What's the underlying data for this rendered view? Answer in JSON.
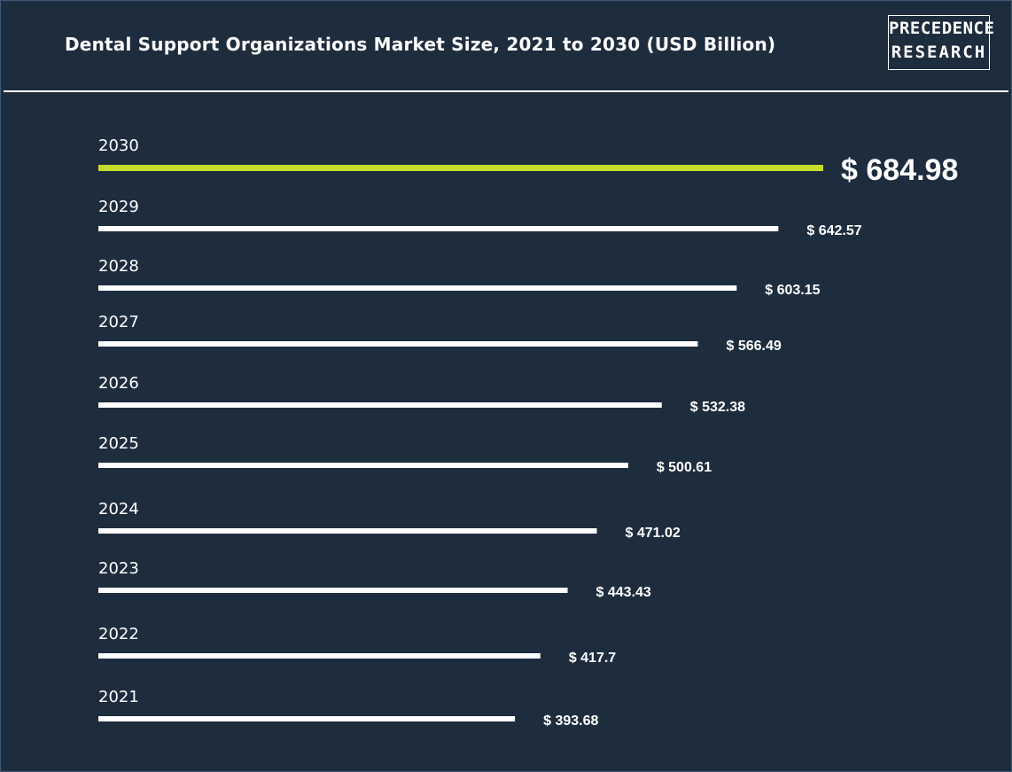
{
  "header": {
    "title": "Dental Support Organizations Market Size, 2021 to 2030 (USD Billion)",
    "logo_line1": "PRECEDENCE",
    "logo_line2": "RESEARCH"
  },
  "colors": {
    "background": "#1e2d3e",
    "bar": "#ffffff",
    "highlight_bar": "#c6dc2a",
    "text": "#ffffff"
  },
  "chart_data": {
    "type": "bar",
    "orientation": "horizontal",
    "categories": [
      "2030",
      "2029",
      "2028",
      "2027",
      "2026",
      "2025",
      "2024",
      "2023",
      "2022",
      "2021"
    ],
    "values": [
      684.98,
      642.57,
      603.15,
      566.49,
      532.38,
      500.61,
      471.02,
      443.43,
      417.7,
      393.68
    ],
    "value_labels": [
      "$ 684.98",
      "$ 642.57",
      "$ 603.15",
      "$ 566.49",
      "$ 532.38",
      "$ 500.61",
      "$ 471.02",
      "$ 443.43",
      "$ 417.7",
      "$ 393.68"
    ],
    "highlight_category": "2030",
    "title": "Dental Support Organizations Market Size, 2021 to 2030 (USD Billion)",
    "grid": false,
    "legend": "none"
  }
}
